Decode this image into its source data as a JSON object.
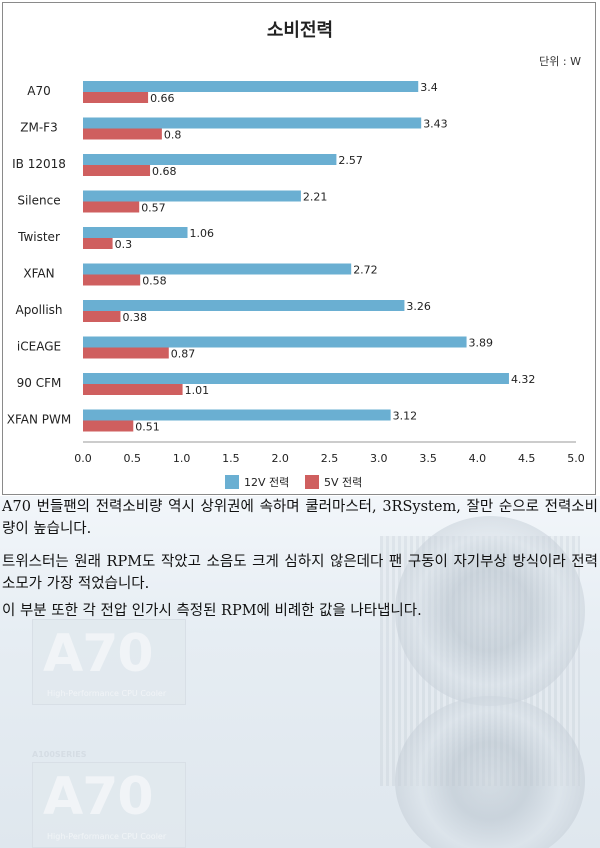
{
  "chart_data": {
    "type": "bar",
    "orientation": "horizontal",
    "title": "소비전력",
    "unit_label": "단위 : W",
    "categories": [
      "A70",
      "ZM-F3",
      "IB 12018",
      "Silence",
      "Twister",
      "XFAN",
      "Apollish",
      "iCEAGE",
      "90 CFM",
      "XFAN PWM"
    ],
    "series": [
      {
        "name": "12V 전력",
        "color": "#6aafd2",
        "values": [
          3.4,
          3.43,
          2.57,
          2.21,
          1.06,
          2.72,
          3.26,
          3.89,
          4.32,
          3.12
        ]
      },
      {
        "name": "5V 전력",
        "color": "#cf5f5f",
        "values": [
          0.66,
          0.8,
          0.68,
          0.57,
          0.3,
          0.58,
          0.38,
          0.87,
          1.01,
          0.51
        ]
      }
    ],
    "xlim": [
      0,
      5.0
    ],
    "xticks": [
      "0.0",
      "0.5",
      "1.0",
      "1.5",
      "2.0",
      "2.5",
      "3.0",
      "3.5",
      "4.0",
      "4.5",
      "5.0"
    ],
    "value_labels": [
      [
        "3.4",
        "3.43",
        "2.57",
        "2.21",
        "1.06",
        "2.72",
        "3.26",
        "3.89",
        "4.32",
        "3.12"
      ],
      [
        "0.66",
        "0.8",
        "0.68",
        "0.57",
        "0.3",
        "0.58",
        "0.38",
        "0.87",
        "1.01",
        "0.51"
      ]
    ],
    "legend_position": "bottom",
    "grid": false
  },
  "logo": {
    "text": "A70",
    "tagline": "High-Performance CPU Cooler",
    "series": "A100SERIES"
  },
  "paragraphs": [
    "A70 번들팬의 전력소비량 역시 상위권에 속하며 쿨러마스터, 3RSystem, 잘만 순으로 전력소비량이 높습니다.",
    "트위스터는 원래 RPM도 작았고 소음도 크게 심하지 않은데다 팬 구동이 자기부상 방식이라 전력소모가 가장 적었습니다.",
    "이 부분 또한 각 전압 인가시 측정된 RPM에 비례한 값을 나타냅니다."
  ]
}
